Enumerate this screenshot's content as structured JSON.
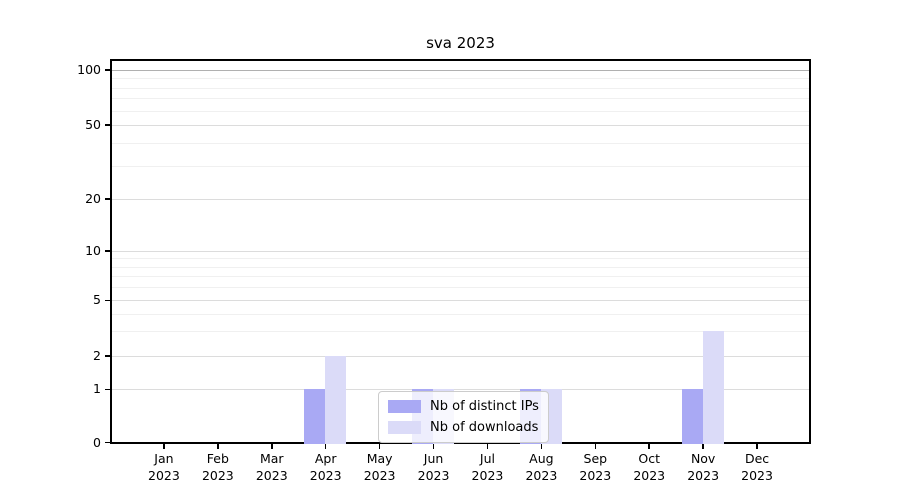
{
  "chart_data": {
    "type": "bar",
    "title": "sva 2023",
    "categories": [
      "Jan",
      "Feb",
      "Mar",
      "Apr",
      "May",
      "Jun",
      "Jul",
      "Aug",
      "Sep",
      "Oct",
      "Nov",
      "Dec"
    ],
    "category_year": "2023",
    "series": [
      {
        "name": "Nb of distinct IPs",
        "color": "#a9a9f4",
        "values": [
          0,
          0,
          0,
          1,
          0,
          1,
          0,
          1,
          0,
          0,
          1,
          0
        ]
      },
      {
        "name": "Nb of downloads",
        "color": "#dbdbf8",
        "values": [
          0,
          0,
          0,
          2,
          0,
          1,
          0,
          1,
          0,
          0,
          3,
          0
        ]
      }
    ],
    "xlabel": "",
    "ylabel": "",
    "y_axis": {
      "scale": "log-like-with-zero-baseline",
      "major_ticks": [
        0,
        1,
        2,
        5,
        10,
        20,
        50,
        100
      ],
      "minor_ticks": [
        3,
        4,
        6,
        7,
        8,
        9,
        30,
        40,
        60,
        70,
        80,
        90
      ],
      "ylim": [
        0,
        120
      ]
    },
    "grid": true,
    "legend_position": "lower center"
  },
  "colors": {
    "background": "#ffffff",
    "axis": "#000000",
    "grid_major": "#dcdcdc",
    "grid_minor": "#f0f0f0",
    "grid_top": "#b0b0b0",
    "legend_border": "#cccccc"
  }
}
